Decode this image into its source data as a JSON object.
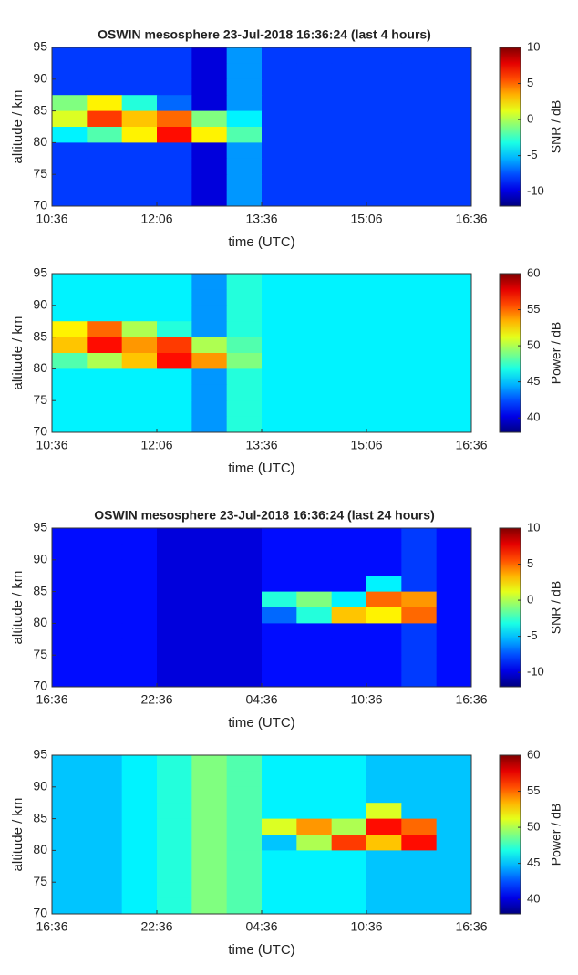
{
  "chart_data": [
    {
      "type": "heatmap",
      "title": "OSWIN mesosphere 23-Jul-2018 16:36:24 (last 4 hours)",
      "xlabel": "time (UTC)",
      "ylabel": "altitude / km",
      "xticks": [
        "10:36",
        "12:06",
        "13:36",
        "15:06",
        "16:36"
      ],
      "ylim": [
        70,
        95
      ],
      "yticks": [
        70,
        75,
        80,
        85,
        90,
        95
      ],
      "zlim": [
        -12,
        10
      ],
      "zticks": [
        -10,
        -5,
        0,
        5,
        10
      ],
      "colorbar_label": "SNR / dB",
      "colormap": "jet",
      "z": [
        [
          -8,
          -8,
          -8,
          -8,
          -10,
          -6,
          -8,
          -8,
          -8,
          -8,
          -8,
          -8
        ],
        [
          -8,
          -8,
          -8,
          -8,
          -10,
          -6,
          -8,
          -8,
          -8,
          -8,
          -8,
          -8
        ],
        [
          -8,
          -8,
          -8,
          -8,
          -10,
          -6,
          -8,
          -8,
          -8,
          -8,
          -8,
          -8
        ],
        [
          -1,
          2,
          -3,
          -7,
          -10,
          -6,
          -8,
          -8,
          -8,
          -8,
          -8,
          -8
        ],
        [
          1,
          6,
          3,
          5,
          -1,
          -4,
          -8,
          -8,
          -8,
          -8,
          -8,
          -8
        ],
        [
          -4,
          -2,
          2,
          7,
          2,
          -2,
          -8,
          -8,
          -8,
          -8,
          -8,
          -8
        ],
        [
          -8,
          -8,
          -8,
          -8,
          -10,
          -6,
          -8,
          -8,
          -8,
          -8,
          -8,
          -8
        ],
        [
          -8,
          -8,
          -8,
          -8,
          -10,
          -6,
          -8,
          -8,
          -8,
          -8,
          -8,
          -8
        ],
        [
          -8,
          -8,
          -8,
          -8,
          -10,
          -6,
          -8,
          -8,
          -8,
          -8,
          -8,
          -8
        ],
        [
          -8,
          -8,
          -8,
          -8,
          -10,
          -6,
          -8,
          -8,
          -8,
          -8,
          -8,
          -8
        ]
      ]
    },
    {
      "type": "heatmap",
      "xlabel": "time (UTC)",
      "ylabel": "altitude / km",
      "xticks": [
        "10:36",
        "12:06",
        "13:36",
        "15:06",
        "16:36"
      ],
      "ylim": [
        70,
        95
      ],
      "yticks": [
        70,
        75,
        80,
        85,
        90,
        95
      ],
      "zlim": [
        38,
        60
      ],
      "zticks": [
        40,
        45,
        50,
        55,
        60
      ],
      "colorbar_label": "Power / dB",
      "colormap": "jet",
      "z": [
        [
          46,
          46,
          46,
          46,
          44,
          47,
          46,
          46,
          46,
          46,
          46,
          46
        ],
        [
          46,
          46,
          46,
          46,
          44,
          47,
          46,
          46,
          46,
          46,
          46,
          46
        ],
        [
          46,
          46,
          46,
          46,
          44,
          47,
          46,
          46,
          46,
          46,
          46,
          46
        ],
        [
          52,
          55,
          50,
          47,
          44,
          47,
          46,
          46,
          46,
          46,
          46,
          46
        ],
        [
          53,
          57,
          54,
          56,
          50,
          48,
          46,
          46,
          46,
          46,
          46,
          46
        ],
        [
          48,
          50,
          53,
          57,
          54,
          49,
          46,
          46,
          46,
          46,
          46,
          46
        ],
        [
          46,
          46,
          46,
          46,
          44,
          47,
          46,
          46,
          46,
          46,
          46,
          46
        ],
        [
          46,
          46,
          46,
          46,
          44,
          47,
          46,
          46,
          46,
          46,
          46,
          46
        ],
        [
          46,
          46,
          46,
          46,
          44,
          47,
          46,
          46,
          46,
          46,
          46,
          46
        ],
        [
          46,
          46,
          46,
          46,
          44,
          47,
          46,
          46,
          46,
          46,
          46,
          46
        ]
      ]
    },
    {
      "type": "heatmap",
      "title": "OSWIN mesosphere 23-Jul-2018 16:36:24 (last 24 hours)",
      "xlabel": "time (UTC)",
      "ylabel": "altitude / km",
      "xticks": [
        "16:36",
        "22:36",
        "04:36",
        "10:36",
        "16:36"
      ],
      "ylim": [
        70,
        95
      ],
      "yticks": [
        70,
        75,
        80,
        85,
        90,
        95
      ],
      "zlim": [
        -12,
        10
      ],
      "zticks": [
        -10,
        -5,
        0,
        5,
        10
      ],
      "colorbar_label": "SNR / dB",
      "colormap": "jet",
      "z": [
        [
          -9,
          -9,
          -9,
          -10,
          -10,
          -10,
          -9,
          -9,
          -9,
          -9,
          -8,
          -9
        ],
        [
          -9,
          -9,
          -9,
          -10,
          -10,
          -10,
          -9,
          -9,
          -9,
          -9,
          -8,
          -9
        ],
        [
          -9,
          -9,
          -9,
          -10,
          -10,
          -10,
          -9,
          -9,
          -9,
          -9,
          -8,
          -9
        ],
        [
          -9,
          -9,
          -9,
          -10,
          -10,
          -10,
          -9,
          -9,
          -9,
          -4,
          -8,
          -9
        ],
        [
          -9,
          -9,
          -9,
          -10,
          -10,
          -10,
          -3,
          -1,
          -4,
          5,
          4,
          -9
        ],
        [
          -9,
          -9,
          -9,
          -10,
          -10,
          -10,
          -7,
          -3,
          3,
          2,
          5,
          -9
        ],
        [
          -9,
          -9,
          -9,
          -10,
          -10,
          -10,
          -9,
          -9,
          -9,
          -9,
          -8,
          -9
        ],
        [
          -9,
          -9,
          -9,
          -10,
          -10,
          -10,
          -9,
          -9,
          -9,
          -9,
          -8,
          -9
        ],
        [
          -9,
          -9,
          -9,
          -10,
          -10,
          -10,
          -9,
          -9,
          -9,
          -9,
          -8,
          -9
        ],
        [
          -9,
          -9,
          -9,
          -10,
          -10,
          -10,
          -9,
          -9,
          -9,
          -9,
          -8,
          -9
        ]
      ]
    },
    {
      "type": "heatmap",
      "xlabel": "time (UTC)",
      "ylabel": "altitude / km",
      "xticks": [
        "16:36",
        "22:36",
        "04:36",
        "10:36",
        "16:36"
      ],
      "ylim": [
        70,
        95
      ],
      "yticks": [
        70,
        75,
        80,
        85,
        90,
        95
      ],
      "zlim": [
        38,
        60
      ],
      "zticks": [
        40,
        45,
        50,
        55,
        60
      ],
      "colorbar_label": "Power / dB",
      "colormap": "jet",
      "z": [
        [
          45,
          45,
          46,
          47,
          49,
          48,
          46,
          46,
          46,
          45,
          45,
          45
        ],
        [
          45,
          45,
          46,
          47,
          49,
          48,
          46,
          46,
          46,
          45,
          45,
          45
        ],
        [
          45,
          45,
          46,
          47,
          49,
          48,
          46,
          46,
          46,
          45,
          45,
          45
        ],
        [
          45,
          45,
          46,
          47,
          49,
          48,
          46,
          46,
          46,
          51,
          45,
          45
        ],
        [
          45,
          45,
          46,
          47,
          49,
          48,
          51,
          54,
          50,
          57,
          55,
          45
        ],
        [
          45,
          45,
          46,
          47,
          49,
          48,
          45,
          50,
          56,
          53,
          57,
          45
        ],
        [
          45,
          45,
          46,
          47,
          49,
          48,
          46,
          46,
          46,
          45,
          45,
          45
        ],
        [
          45,
          45,
          46,
          47,
          49,
          48,
          46,
          46,
          46,
          45,
          45,
          45
        ],
        [
          45,
          45,
          46,
          47,
          49,
          48,
          46,
          46,
          46,
          45,
          45,
          45
        ],
        [
          45,
          45,
          46,
          47,
          49,
          48,
          46,
          46,
          46,
          45,
          45,
          45
        ]
      ]
    }
  ]
}
